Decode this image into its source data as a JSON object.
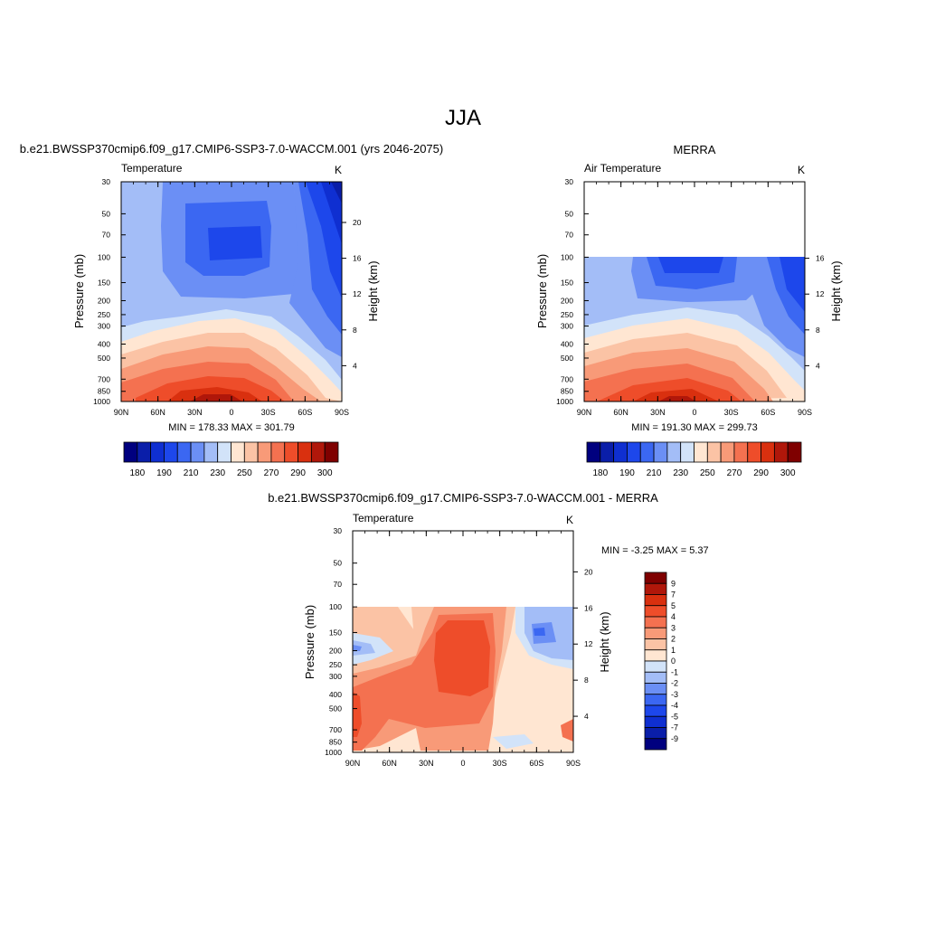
{
  "page": {
    "title": "JJA"
  },
  "colors": {
    "abs_levels": [
      "#00007f",
      "#0a1ea9",
      "#0f2fd1",
      "#1d47eb",
      "#3b67f2",
      "#6b8ff5",
      "#a3bdf7",
      "#d2e3f9",
      "#ffe6d2",
      "#fbc3a5",
      "#f89a78",
      "#f47150",
      "#ee4d2a",
      "#d9300f",
      "#b0170a",
      "#7f0000"
    ],
    "diff_levels": [
      "#00007f",
      "#0a1ea9",
      "#0f2fd1",
      "#1d47eb",
      "#3b67f2",
      "#6b8ff5",
      "#a3bdf7",
      "#d2e3f9",
      "#ffe6d2",
      "#fbc3a5",
      "#f89a78",
      "#f47150",
      "#ee4d2a",
      "#d9300f",
      "#b0170a",
      "#7f0000"
    ]
  },
  "chart_data": [
    {
      "id": "model",
      "type": "heatmap",
      "title": "b.e21.BWSSP370cmip6.f09_g17.CMIP6-SSP3-7.0-WACCM.001 (yrs 2046-2075)",
      "left_label": "Temperature",
      "units": "K",
      "xlabel": "",
      "ylabel": "Pressure (mb)",
      "y2label": "Height (km)",
      "x_ticks": [
        "90N",
        "60N",
        "30N",
        "0",
        "30S",
        "60S",
        "90S"
      ],
      "y_ticks": [
        "30",
        "50",
        "70",
        "100",
        "150",
        "200",
        "250",
        "300",
        "400",
        "500",
        "700",
        "850",
        "1000"
      ],
      "y2_ticks": [
        "20",
        "16",
        "12",
        "8",
        "4"
      ],
      "ylim": [
        30,
        1000
      ],
      "xlim": [
        90,
        -90
      ],
      "min": 178.33,
      "max": 301.79,
      "stats_text": "MIN = 178.33  MAX = 301.79",
      "colorbar_labels": [
        "180",
        "190",
        "210",
        "230",
        "250",
        "270",
        "290",
        "300"
      ],
      "field_top_pressure": 30
    },
    {
      "id": "obs",
      "type": "heatmap",
      "title": "MERRA",
      "left_label": "Air Temperature",
      "units": "K",
      "xlabel": "",
      "ylabel": "Pressure (mb)",
      "y2label": "Height (km)",
      "x_ticks": [
        "90N",
        "60N",
        "30N",
        "0",
        "30S",
        "60S",
        "90S"
      ],
      "y_ticks": [
        "30",
        "50",
        "70",
        "100",
        "150",
        "200",
        "250",
        "300",
        "400",
        "500",
        "700",
        "850",
        "1000"
      ],
      "y2_ticks": [
        "16",
        "12",
        "8",
        "4"
      ],
      "ylim": [
        30,
        1000
      ],
      "xlim": [
        90,
        -90
      ],
      "min": 191.3,
      "max": 299.73,
      "stats_text": "MIN = 191.30  MAX = 299.73",
      "colorbar_labels": [
        "180",
        "190",
        "210",
        "230",
        "250",
        "270",
        "290",
        "300"
      ],
      "field_top_pressure": 100
    },
    {
      "id": "diff",
      "type": "heatmap",
      "title": "b.e21.BWSSP370cmip6.f09_g17.CMIP6-SSP3-7.0-WACCM.001 - MERRA",
      "left_label": "Temperature",
      "units": "K",
      "xlabel": "",
      "ylabel": "Pressure (mb)",
      "y2label": "Height (km)",
      "x_ticks": [
        "90N",
        "60N",
        "30N",
        "0",
        "30S",
        "60S",
        "90S"
      ],
      "y_ticks": [
        "30",
        "50",
        "70",
        "100",
        "150",
        "200",
        "250",
        "300",
        "400",
        "500",
        "700",
        "850",
        "1000"
      ],
      "y2_ticks": [
        "20",
        "16",
        "12",
        "8",
        "4"
      ],
      "ylim": [
        30,
        1000
      ],
      "xlim": [
        90,
        -90
      ],
      "min": -3.25,
      "max": 5.37,
      "stats_text": "MIN =  -3.25  MAX =   5.37",
      "colorbar_labels": [
        "9",
        "7",
        "5",
        "4",
        "3",
        "2",
        "1",
        "0",
        "-1",
        "-2",
        "-3",
        "-4",
        "-5",
        "-7",
        "-9"
      ],
      "field_top_pressure": 100
    }
  ]
}
